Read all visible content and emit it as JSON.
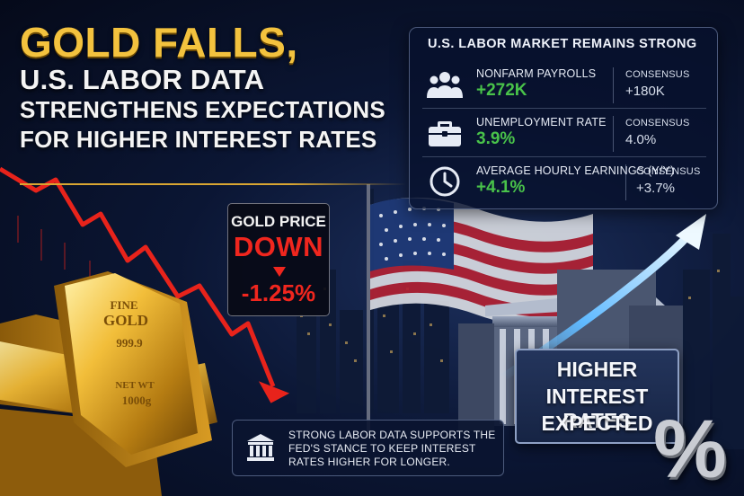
{
  "headline": {
    "line1": "GOLD FALLS,",
    "line2": "U.S. LABOR DATA",
    "line3": "STRENGTHENS EXPECTATIONS",
    "line4": "FOR HIGHER INTEREST RATES"
  },
  "labor_panel": {
    "title": "U.S. LABOR MARKET REMAINS STRONG",
    "rows": [
      {
        "icon": "people-icon",
        "label": "NONFARM PAYROLLS",
        "value": "+272K",
        "consensus_label": "CONSENSUS",
        "consensus_value": "+180K"
      },
      {
        "icon": "briefcase-icon",
        "label": "UNEMPLOYMENT RATE",
        "value": "3.9%",
        "consensus_label": "CONSENSUS",
        "consensus_value": "4.0%"
      },
      {
        "icon": "clock-icon",
        "label": "AVERAGE HOURLY EARNINGS (Y/Y)",
        "value": "+4.1%",
        "consensus_label": "CONSENSUS",
        "consensus_value": "+3.7%"
      }
    ]
  },
  "gold_price": {
    "label": "GOLD PRICE",
    "direction": "DOWN",
    "change": "-1.25%"
  },
  "gold_bar": {
    "stamp_line1": "FINE",
    "stamp_line2": "GOLD",
    "stamp_line3": "999.9",
    "stamp_line4": "NET WT",
    "stamp_line5": "1000g"
  },
  "rates_sign": {
    "line1": "HIGHER",
    "line2": "INTEREST RATES",
    "line3": "EXPECTED"
  },
  "percent_symbol": "%",
  "fed_note": {
    "icon": "bank-icon",
    "text": "STRONG LABOR DATA SUPPORTS THE FED'S STANCE TO KEEP INTEREST RATES HIGHER FOR LONGER."
  },
  "colors": {
    "gold": "#f3c23e",
    "positive": "#49c34a",
    "negative": "#f0261e",
    "up_arrow": "#7fd0ff"
  }
}
